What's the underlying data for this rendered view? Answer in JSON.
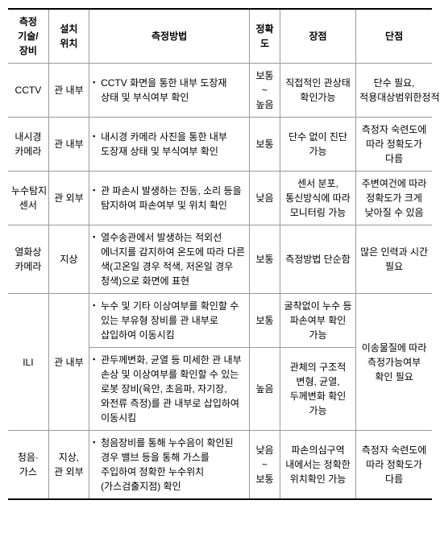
{
  "header": {
    "tech": "측정\n기술/\n장비",
    "location": "설치\n위치",
    "method": "측정방법",
    "accuracy": "정확\n도",
    "advantage": "장점",
    "disadvantage": "단점"
  },
  "rows": [
    {
      "tech": "CCTV",
      "location": "관 내부",
      "method": "CCTV 화면을 통한 내부 도장재 상태 및 부식여부 확인",
      "accuracy": "보통\n~\n높음",
      "advantage": "직접적인 관상태 확인가능",
      "disadvantage": "단수 필요, 적용대상범위한정적"
    },
    {
      "tech": "내시경\n카메라",
      "location": "관 내부",
      "method": "내시경 카메라 사진을 통한 내부 도장재 상태 및 부식여부 확인",
      "accuracy": "보통",
      "advantage": "단수 없이 진단 가능",
      "disadvantage": "측정자 숙련도에 따라 정확도가 다름"
    },
    {
      "tech": "누수탐지\n센서",
      "location": "관 외부",
      "method": "관 파손시 발생하는 진동, 소리 등을 탐지하여 파손여부 및 위치 확인",
      "accuracy": "낮음",
      "advantage": "센서 분포, 통신방식에 따라 모니터링 가능",
      "disadvantage": "주변여건에 따라 정확도가 크게 낮아질 수 있음"
    },
    {
      "tech": "열화상\n카메라",
      "location": "지상",
      "method": "열수송관에서 발생하는 적외선 에너지를 감지하여 온도에 따라 다른 색(고온일 경우 적색, 저온일 경우 청색)으로 화면에 표현",
      "accuracy": "보통",
      "advantage": "측정방법 단순함",
      "disadvantage": "많은 인력과 시간 필요"
    },
    {
      "tech": "ILI",
      "tech_rowspan": 2,
      "location": "관 내부",
      "location_rowspan": 2,
      "method": "누수 및 기타 이상여부를 확인할 수 있는 부유형 장비를 관 내부로 삽입하여 이동시킴",
      "accuracy": "보통",
      "advantage": "굴착없이 누수 등 파손여부 확인 가능",
      "disadvantage": "이송물질에 따라 측정가능여부 확인 필요",
      "disadvantage_rowspan": 2
    },
    {
      "method": "관두께변화, 균열 등 미세한 관 내부 손상 및 이상여부를 확인할 수 있는 로봇 장비(육안, 초음파, 자기장, 와전류 측정)를 관 내부로 삽입하여 이동시킴",
      "accuracy": "높음",
      "advantage": "관체의 구조적 변형, 균열, 두께변화 확인 가능"
    },
    {
      "tech": "청음·가스",
      "location": "지상,\n관 외부",
      "method": "청음장비를 통해 누수음이 확인된 경우 밸브 등을 통해 가스를 주입하여 정확한 누수위치 (가스검출지점) 확인",
      "accuracy": "낮음\n~\n보통",
      "advantage": "파손의심구역 내에서는 정확한 위치확인 가능",
      "disadvantage": "측정자 숙련도에 따라 정확도가 다름"
    }
  ]
}
